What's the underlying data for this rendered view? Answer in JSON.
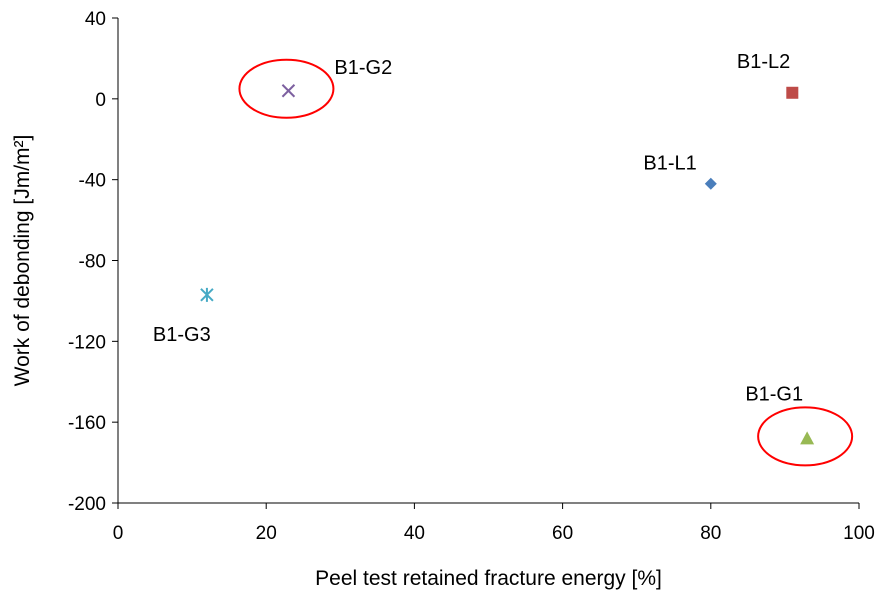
{
  "chart_data": {
    "type": "scatter",
    "title": "",
    "xlabel": "Peel test retained fracture energy [%]",
    "ylabel": "Work of debonding [Jm/m²]",
    "xlim": [
      0,
      100
    ],
    "ylim": [
      -200,
      40
    ],
    "xticks": [
      0,
      20,
      40,
      60,
      80,
      100
    ],
    "yticks": [
      40,
      0,
      -40,
      -80,
      -120,
      -160,
      -200
    ],
    "grid": false,
    "legend": "none",
    "series": [
      {
        "label": "B1-L1",
        "x": 80,
        "y": -42,
        "marker": "diamond",
        "color": "#4a7ebb"
      },
      {
        "label": "B1-L2",
        "x": 91,
        "y": 3,
        "marker": "square",
        "color": "#be4b48"
      },
      {
        "label": "B1-G1",
        "x": 93,
        "y": -168,
        "marker": "triangle",
        "color": "#98b954"
      },
      {
        "label": "B1-G2",
        "x": 23,
        "y": 4,
        "marker": "x",
        "color": "#7d60a0"
      },
      {
        "label": "B1-G3",
        "x": 12,
        "y": -97,
        "marker": "asterisk",
        "color": "#46aac5"
      }
    ],
    "highlights": [
      {
        "label": "B1-G2",
        "color": "#ff0000"
      },
      {
        "label": "B1-G1",
        "color": "#ff0000"
      }
    ]
  }
}
